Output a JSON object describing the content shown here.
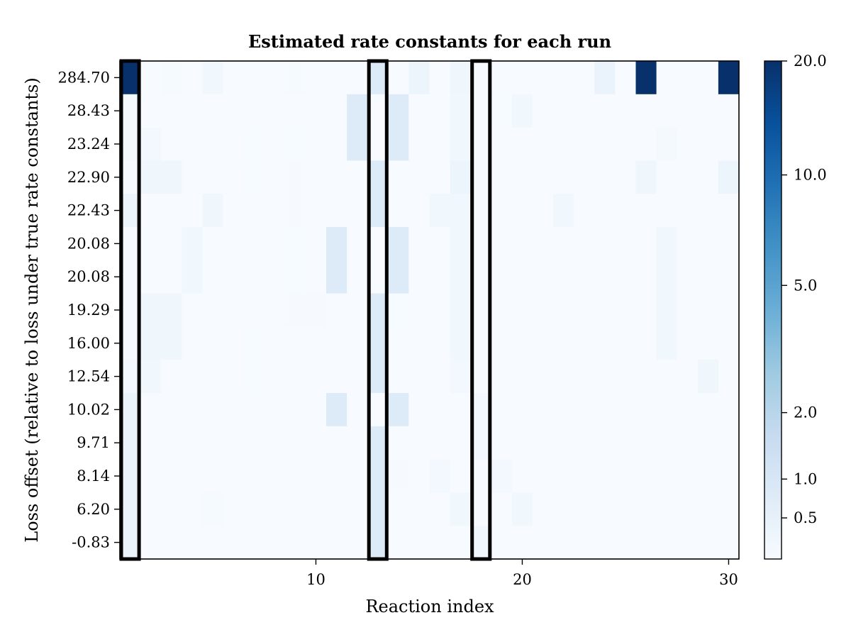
{
  "chart_data": {
    "type": "heatmap",
    "title": "Estimated rate constants for each run",
    "xlabel": "Reaction index",
    "ylabel": "Loss offset (relative to loss under true rate constants)",
    "x_range": [
      1,
      30
    ],
    "x_ticks": [
      10,
      20,
      30
    ],
    "y_tick_labels": [
      "284.70",
      "28.43",
      "23.24",
      "22.90",
      "22.43",
      "20.08",
      "20.08",
      "19.29",
      "16.00",
      "12.54",
      "10.02",
      "9.71",
      "8.14",
      "6.20",
      "-0.83"
    ],
    "colorbar": {
      "colormap": "Blues",
      "range": [
        0,
        20
      ],
      "ticks": [
        0.5,
        1.0,
        2.0,
        5.0,
        10.0,
        20.0
      ],
      "tick_labels": [
        "0.5",
        "1.0",
        "2.0",
        "5.0",
        "10.0",
        "20.0"
      ]
    },
    "highlighted_columns": [
      1,
      13,
      18
    ],
    "values": [
      [
        20,
        0,
        0.05,
        0,
        0.2,
        0,
        0,
        0,
        0.05,
        0,
        0,
        0,
        0.8,
        0,
        0.3,
        0,
        0.25,
        0,
        0,
        0,
        0,
        0,
        0,
        0.4,
        0,
        20,
        0,
        0,
        0,
        20
      ],
      [
        0.1,
        0,
        0,
        0,
        0,
        0,
        0,
        0,
        0,
        0,
        0,
        0.8,
        0,
        0.8,
        0,
        0,
        0.2,
        0,
        0.02,
        0.2,
        0,
        0,
        0,
        0,
        0,
        0,
        0,
        0,
        0,
        0
      ],
      [
        0.1,
        0.15,
        0,
        0,
        0,
        0,
        0.02,
        0,
        0.02,
        0,
        0,
        0.8,
        0,
        0.8,
        0,
        0,
        0.2,
        0,
        0,
        0,
        0,
        0,
        0,
        0,
        0,
        0,
        0.1,
        0,
        0,
        0
      ],
      [
        0,
        0.25,
        0.25,
        0,
        0,
        0,
        0.02,
        0,
        0.03,
        0,
        0,
        0,
        0.8,
        0,
        0,
        0,
        0.3,
        0,
        0,
        0,
        0,
        0,
        0,
        0,
        0,
        0.25,
        0,
        0,
        0,
        0.3
      ],
      [
        0.3,
        0,
        0,
        0,
        0.25,
        0,
        0,
        0,
        0.03,
        0,
        0,
        0,
        0.8,
        0,
        0,
        0.2,
        0.2,
        0,
        0,
        0,
        0,
        0.2,
        0,
        0,
        0,
        0,
        0,
        0,
        0,
        0
      ],
      [
        0,
        0,
        0,
        0.2,
        0,
        0,
        0,
        0,
        0.02,
        0,
        0.8,
        0,
        0,
        0.8,
        0,
        0,
        0.2,
        0,
        0,
        0,
        0,
        0,
        0,
        0,
        0,
        0,
        0.2,
        0,
        0,
        0
      ],
      [
        0,
        0,
        0,
        0.2,
        0,
        0,
        0,
        0,
        0.02,
        0,
        0.8,
        0,
        0,
        0.8,
        0,
        0,
        0.2,
        0,
        0,
        0,
        0,
        0,
        0,
        0,
        0,
        0,
        0.2,
        0,
        0,
        0
      ],
      [
        0,
        0.25,
        0.25,
        0,
        0,
        0,
        0,
        0,
        0.03,
        0.03,
        0,
        0,
        0.8,
        0.02,
        0,
        0,
        0.2,
        0,
        0,
        0,
        0,
        0,
        0,
        0,
        0,
        0,
        0.2,
        0,
        0,
        0
      ],
      [
        0,
        0.25,
        0.25,
        0,
        0,
        0,
        0.02,
        0,
        0,
        0,
        0,
        0,
        0.8,
        0,
        0,
        0,
        0.2,
        0,
        0,
        0,
        0,
        0,
        0,
        0,
        0,
        0,
        0.2,
        0,
        0,
        0
      ],
      [
        0.15,
        0.2,
        0,
        0,
        0,
        0,
        0.02,
        0,
        0,
        0,
        0,
        0,
        0.8,
        0,
        0,
        0,
        0.15,
        0,
        0,
        0,
        0,
        0,
        0,
        0,
        0,
        0,
        0,
        0,
        0.25,
        0
      ],
      [
        0.35,
        0,
        0,
        0,
        0,
        0,
        0,
        0,
        0,
        0,
        0.8,
        0,
        0,
        0.8,
        0,
        0,
        0,
        0.15,
        0,
        0,
        0,
        0,
        0,
        0,
        0,
        0,
        0,
        0,
        0,
        0
      ],
      [
        0.35,
        0,
        0,
        0,
        0,
        0,
        0,
        0,
        0,
        0,
        0,
        0,
        0.8,
        0,
        0,
        0,
        0,
        0.15,
        0,
        0,
        0,
        0,
        0,
        0,
        0,
        0,
        0,
        0,
        0,
        0
      ],
      [
        0.35,
        0,
        0,
        0,
        0,
        0,
        0,
        0,
        0,
        0,
        0,
        0,
        0.8,
        0.03,
        0,
        0.15,
        0,
        0,
        0.15,
        0,
        0,
        0,
        0,
        0,
        0,
        0,
        0,
        0,
        0,
        0
      ],
      [
        0.35,
        0,
        0,
        0,
        0.05,
        0,
        0,
        0,
        0,
        0,
        0,
        0,
        0.8,
        0,
        0,
        0,
        0.2,
        0,
        0,
        0.2,
        0,
        0,
        0,
        0,
        0,
        0,
        0,
        0,
        0,
        0
      ],
      [
        0.35,
        0,
        0,
        0,
        0,
        0,
        0,
        0,
        0,
        0,
        0,
        0,
        0.8,
        0,
        0,
        0,
        0,
        0.2,
        0,
        0,
        0,
        0,
        0,
        0,
        0,
        0,
        0,
        0,
        0,
        0
      ]
    ]
  }
}
